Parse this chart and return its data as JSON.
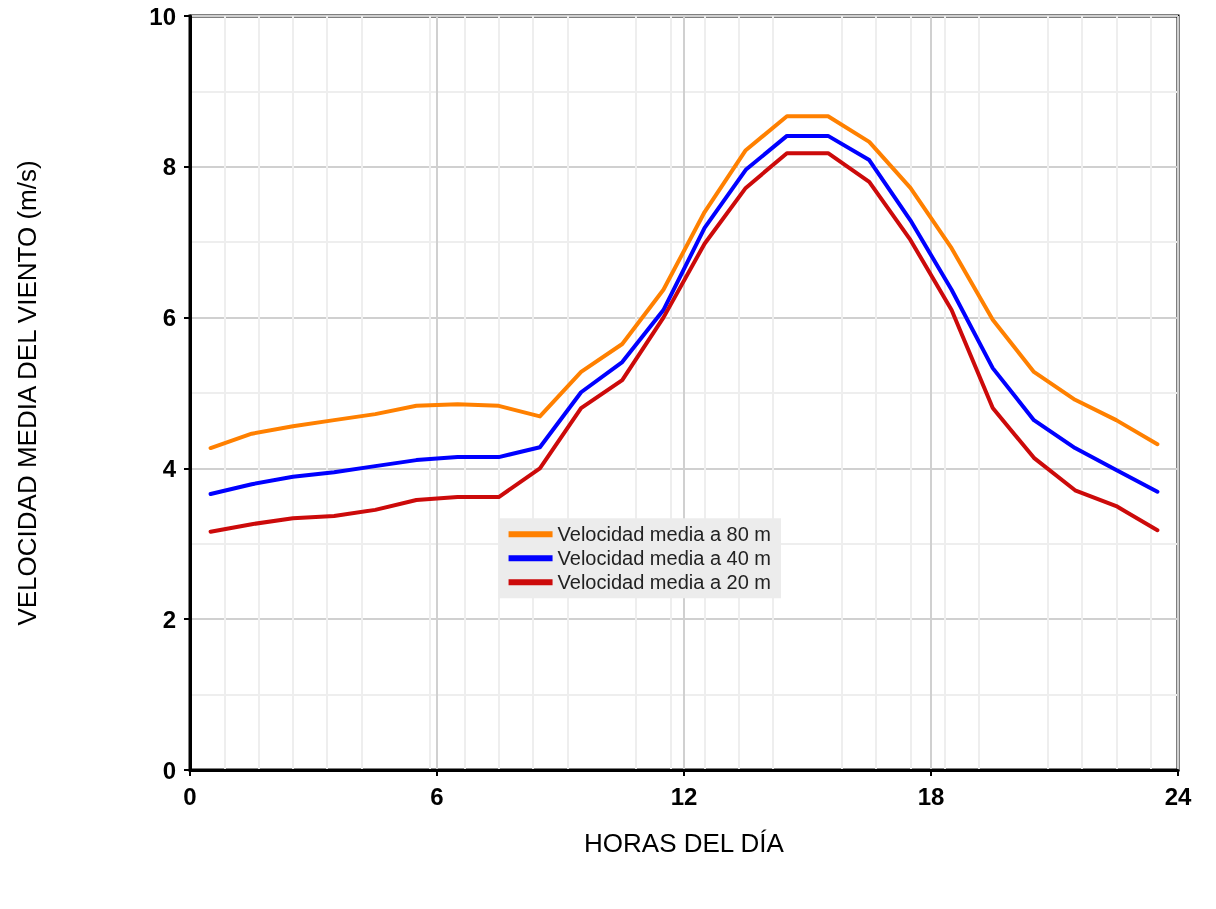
{
  "chart_data": {
    "type": "line",
    "xlabel": "HORAS DEL DÍA",
    "ylabel": "VELOCIDAD MEDIA DEL VIENTO (m/s)",
    "x": [
      0.5,
      1.5,
      2.5,
      3.5,
      4.5,
      5.5,
      6.5,
      7.5,
      8.5,
      9.5,
      10.5,
      11.5,
      12.5,
      13.5,
      14.5,
      15.5,
      16.5,
      17.5,
      18.5,
      19.5,
      20.5,
      21.5,
      22.5,
      23.5
    ],
    "series": [
      {
        "name": "Velocidad media a 80 m",
        "color": "#ff8000",
        "values": [
          4.27,
          4.46,
          4.56,
          4.64,
          4.72,
          4.83,
          4.85,
          4.83,
          4.69,
          5.28,
          5.65,
          6.37,
          7.4,
          8.22,
          8.67,
          8.67,
          8.33,
          7.72,
          6.92,
          5.97,
          5.28,
          4.91,
          4.64,
          4.32
        ]
      },
      {
        "name": "Velocidad media a 40 m",
        "color": "#0000ff",
        "values": [
          3.66,
          3.79,
          3.89,
          3.95,
          4.03,
          4.11,
          4.15,
          4.15,
          4.28,
          5.01,
          5.41,
          6.1,
          7.19,
          7.96,
          8.41,
          8.41,
          8.09,
          7.29,
          6.37,
          5.33,
          4.64,
          4.27,
          3.98,
          3.69
        ]
      },
      {
        "name": "Velocidad media a 20 m",
        "color": "#cc0a0a",
        "values": [
          3.16,
          3.26,
          3.34,
          3.37,
          3.45,
          3.58,
          3.62,
          3.62,
          4.0,
          4.8,
          5.17,
          6.0,
          6.98,
          7.72,
          8.18,
          8.18,
          7.8,
          7.03,
          6.1,
          4.8,
          4.14,
          3.71,
          3.5,
          3.18
        ]
      }
    ],
    "xlim": [
      0,
      24
    ],
    "xticks": [
      0,
      6,
      12,
      18,
      24
    ],
    "ylim": [
      0,
      10
    ],
    "yticks": [
      0,
      2,
      4,
      6,
      8,
      10
    ],
    "grid": true,
    "legend": "center",
    "marker": "none",
    "line_style": "solid"
  }
}
